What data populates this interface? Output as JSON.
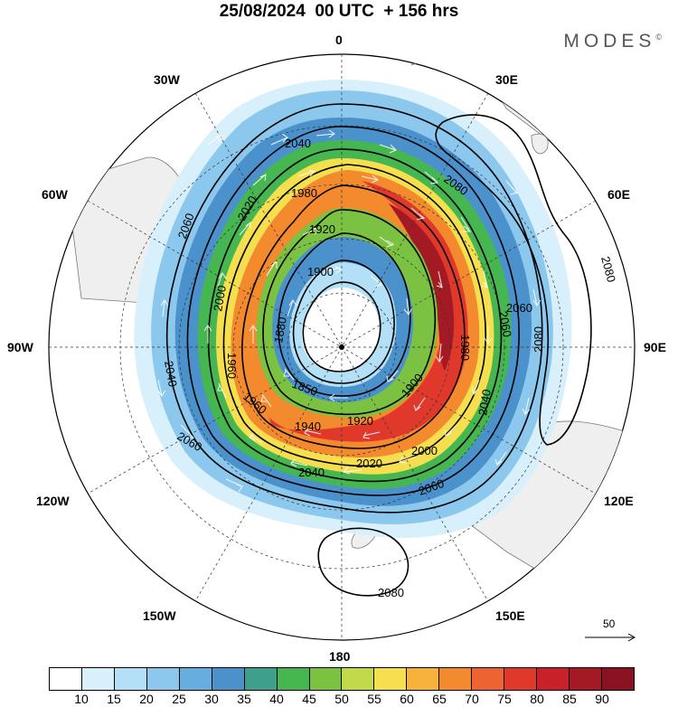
{
  "title": "25/08/2024  00 UTC  + 156 hrs",
  "brand": "MODES",
  "brand_mark": "©",
  "meridian_labels": {
    "n": "0",
    "s": "180",
    "w": "90W",
    "e": "90E",
    "w30": "30W",
    "e30": "30E",
    "w60": "60W",
    "e60": "60E",
    "w120": "120W",
    "e120": "120E",
    "w150": "150W",
    "e150": "150E"
  },
  "contour_labels": [
    "2040",
    "2060",
    "2080",
    "2080",
    "2080",
    "2060",
    "2020",
    "1980",
    "1920",
    "1900",
    "1880",
    "1850",
    "1960",
    "2000",
    "1960",
    "1940",
    "1920",
    "1900",
    "2000",
    "2020",
    "2040",
    "2060",
    "2040",
    "2060",
    "2040",
    "1980",
    "2060",
    "2080"
  ],
  "vector_scale": "50",
  "colorbar": {
    "colors": [
      "#ffffff",
      "#d8f0fb",
      "#b3e0f7",
      "#8cc8ee",
      "#66aee0",
      "#4b92cc",
      "#3e9f8c",
      "#46b650",
      "#7cc242",
      "#c2d94a",
      "#f5df4e",
      "#f7b23b",
      "#f48a2e",
      "#ee6331",
      "#e0392c",
      "#c92129",
      "#a31a25",
      "#8a1321"
    ],
    "ticks": [
      "10",
      "15",
      "20",
      "25",
      "30",
      "35",
      "40",
      "45",
      "50",
      "55",
      "60",
      "65",
      "70",
      "75",
      "80",
      "85",
      "90"
    ]
  }
}
